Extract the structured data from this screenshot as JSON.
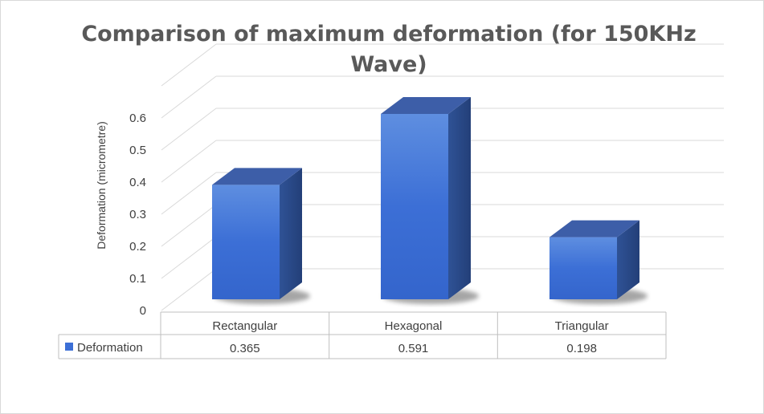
{
  "chart_data": {
    "type": "bar",
    "title_lines": [
      "Comparison of maximum deformation (for 150KHz",
      "Wave)"
    ],
    "ylabel": "Deformation (micrometre)",
    "xlabel": "",
    "categories": [
      "Rectangular",
      "Hexagonal",
      "Triangular"
    ],
    "series": [
      {
        "name": "Deformation",
        "values": [
          0.365,
          0.591,
          0.198
        ],
        "value_labels": [
          "0.365",
          "0.591",
          "0.198"
        ]
      }
    ],
    "ylim": [
      0,
      0.7
    ],
    "yticks": [
      "0",
      "0.1",
      "0.2",
      "0.3",
      "0.4",
      "0.5",
      "0.6"
    ],
    "grid": true,
    "three_d": true,
    "legend": "data-table",
    "colors": {
      "bar_front": "#3c6fd6",
      "bar_side": "#2b4a8c",
      "bar_top": "#3d5ea8",
      "grid": "#d9d9d9"
    }
  }
}
